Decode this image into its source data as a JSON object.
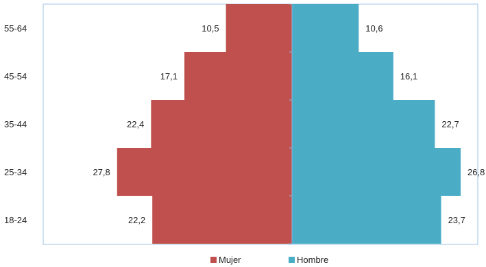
{
  "chart_data": {
    "type": "bar",
    "orientation": "horizontal",
    "layout": "population-pyramid",
    "categories": [
      "18-24",
      "25-34",
      "35-44",
      "45-54",
      "55-64"
    ],
    "series": [
      {
        "name": "Mujer",
        "color": "#C0504D",
        "side": "left",
        "values": [
          22.2,
          27.8,
          22.4,
          17.1,
          10.5
        ],
        "labels": [
          "22,2",
          "27,8",
          "22,4",
          "17,1",
          "10,5"
        ]
      },
      {
        "name": "Hombre",
        "color": "#4BACC6",
        "side": "right",
        "values": [
          23.7,
          26.8,
          22.7,
          16.1,
          10.6
        ],
        "labels": [
          "23,7",
          "26,8",
          "22,7",
          "16,1",
          "10,6"
        ]
      }
    ],
    "title": "",
    "xlabel": "",
    "ylabel": "",
    "grid": false,
    "legend_position": "bottom",
    "frame_color": "#9DC3E6"
  }
}
